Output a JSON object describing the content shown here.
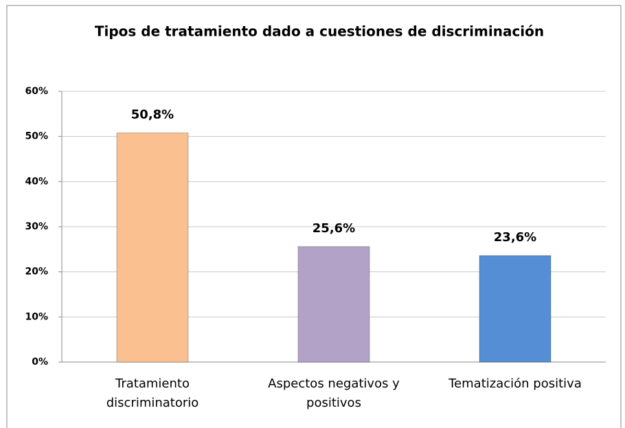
{
  "chart_data": {
    "type": "bar",
    "title": "Tipos de tratamiento dado a cuestiones de discriminación",
    "categories": [
      "Tratamiento discriminatorio",
      "Aspectos negativos y positivos",
      "Tematización positiva"
    ],
    "values": [
      50.8,
      25.6,
      23.6
    ],
    "value_labels": [
      "50,8%",
      "25,6%",
      "23,6%"
    ],
    "colors": [
      "#fac090",
      "#b3a2c7",
      "#558ed5"
    ],
    "ylim": [
      0,
      60
    ],
    "yticks": [
      {
        "value": 0,
        "label": "0%"
      },
      {
        "value": 10,
        "label": "10%"
      },
      {
        "value": 20,
        "label": "20%"
      },
      {
        "value": 30,
        "label": "30%"
      },
      {
        "value": 40,
        "label": "40%"
      },
      {
        "value": 50,
        "label": "50%"
      },
      {
        "value": 60,
        "label": "60%"
      }
    ],
    "grid": true
  }
}
